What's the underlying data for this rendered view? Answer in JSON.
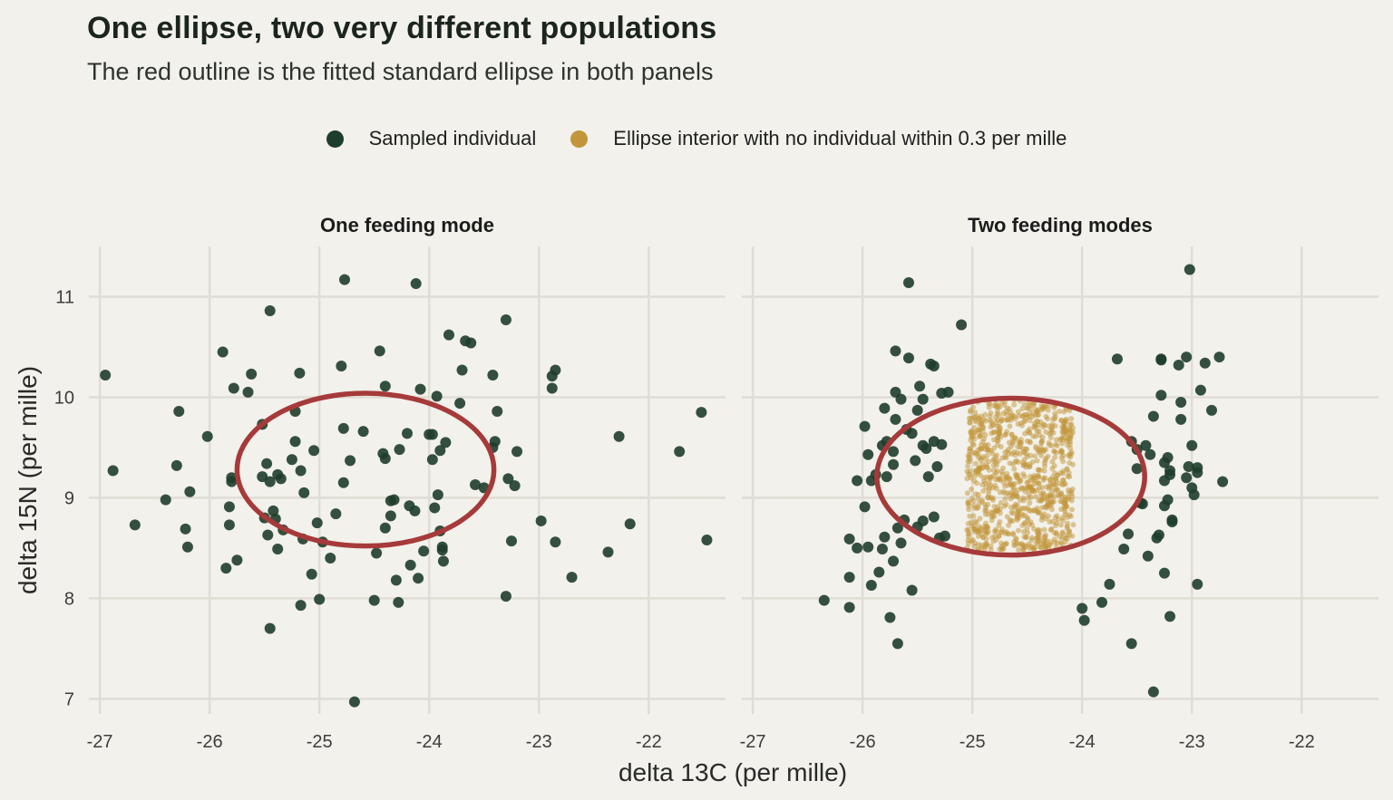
{
  "title": "One ellipse, two very different populations",
  "subtitle": "The red outline is the fitted standard ellipse in both panels",
  "legend": [
    {
      "label": "Sampled individual",
      "color": "#1f3d2b"
    },
    {
      "label": "Ellipse interior with no individual within 0.3 per mille",
      "color": "#c2953a"
    }
  ],
  "colors": {
    "points": "#1f3d2b",
    "fill": "#c2953a",
    "ellipse": "#a63a3a",
    "grid": "#dfddd4"
  },
  "chart_data": [
    {
      "type": "scatter",
      "panel_title": "One feeding mode",
      "xlabel": "delta 13C (per mille)",
      "ylabel": "delta 15N (per mille)",
      "xlim": [
        -27.1,
        -21.3
      ],
      "ylim": [
        6.85,
        11.5
      ],
      "x_ticks": [
        -27,
        -26,
        -25,
        -24,
        -23,
        -22
      ],
      "y_ticks": [
        7,
        8,
        9,
        10,
        11
      ],
      "grid": true,
      "ellipse": {
        "cx": -24.58,
        "cy": 9.28,
        "rx": 1.17,
        "ry": 0.76
      },
      "points": [
        [
          -26.95,
          10.22
        ],
        [
          -26.88,
          9.27
        ],
        [
          -26.68,
          8.73
        ],
        [
          -26.4,
          8.98
        ],
        [
          -26.3,
          9.32
        ],
        [
          -26.28,
          9.86
        ],
        [
          -26.22,
          8.69
        ],
        [
          -26.2,
          8.51
        ],
        [
          -26.18,
          9.06
        ],
        [
          -26.02,
          9.61
        ],
        [
          -25.88,
          10.45
        ],
        [
          -25.85,
          8.3
        ],
        [
          -25.82,
          8.73
        ],
        [
          -25.82,
          8.91
        ],
        [
          -25.8,
          9.2
        ],
        [
          -25.8,
          9.16
        ],
        [
          -25.78,
          10.09
        ],
        [
          -25.75,
          8.38
        ],
        [
          -25.65,
          10.05
        ],
        [
          -25.62,
          10.23
        ],
        [
          -25.52,
          9.73
        ],
        [
          -25.52,
          9.21
        ],
        [
          -25.5,
          8.8
        ],
        [
          -25.48,
          9.34
        ],
        [
          -25.47,
          8.63
        ],
        [
          -25.45,
          9.16
        ],
        [
          -25.45,
          10.86
        ],
        [
          -25.45,
          7.7
        ],
        [
          -25.42,
          8.87
        ],
        [
          -25.4,
          8.79
        ],
        [
          -25.38,
          9.23
        ],
        [
          -25.38,
          8.49
        ],
        [
          -25.35,
          9.19
        ],
        [
          -25.33,
          8.68
        ],
        [
          -25.25,
          9.38
        ],
        [
          -25.22,
          9.56
        ],
        [
          -25.22,
          9.86
        ],
        [
          -25.18,
          10.24
        ],
        [
          -25.17,
          9.27
        ],
        [
          -25.17,
          7.93
        ],
        [
          -25.15,
          8.59
        ],
        [
          -25.14,
          9.05
        ],
        [
          -25.07,
          8.24
        ],
        [
          -25.05,
          9.47
        ],
        [
          -25.02,
          8.75
        ],
        [
          -25.0,
          7.99
        ],
        [
          -24.97,
          8.56
        ],
        [
          -24.9,
          8.4
        ],
        [
          -24.85,
          8.84
        ],
        [
          -24.8,
          10.31
        ],
        [
          -24.78,
          9.69
        ],
        [
          -24.78,
          9.15
        ],
        [
          -24.77,
          11.17
        ],
        [
          -24.72,
          9.37
        ],
        [
          -24.68,
          6.97
        ],
        [
          -24.6,
          9.66
        ],
        [
          -24.5,
          7.98
        ],
        [
          -24.48,
          8.45
        ],
        [
          -24.45,
          10.46
        ],
        [
          -24.42,
          9.44
        ],
        [
          -24.4,
          10.11
        ],
        [
          -24.4,
          8.7
        ],
        [
          -24.4,
          9.39
        ],
        [
          -24.35,
          8.82
        ],
        [
          -24.35,
          8.97
        ],
        [
          -24.32,
          8.98
        ],
        [
          -24.3,
          8.18
        ],
        [
          -24.28,
          7.96
        ],
        [
          -24.27,
          9.48
        ],
        [
          -24.2,
          9.64
        ],
        [
          -24.18,
          8.92
        ],
        [
          -24.17,
          8.33
        ],
        [
          -24.13,
          8.87
        ],
        [
          -24.12,
          11.13
        ],
        [
          -24.1,
          8.2
        ],
        [
          -24.08,
          10.08
        ],
        [
          -24.05,
          8.47
        ],
        [
          -24.0,
          9.63
        ],
        [
          -23.97,
          9.63
        ],
        [
          -23.97,
          9.38
        ],
        [
          -23.95,
          8.9
        ],
        [
          -23.93,
          10.01
        ],
        [
          -23.92,
          9.03
        ],
        [
          -23.9,
          8.67
        ],
        [
          -23.9,
          9.47
        ],
        [
          -23.88,
          8.51
        ],
        [
          -23.88,
          8.48
        ],
        [
          -23.87,
          8.37
        ],
        [
          -23.85,
          9.55
        ],
        [
          -23.82,
          10.62
        ],
        [
          -23.72,
          9.94
        ],
        [
          -23.7,
          10.27
        ],
        [
          -23.67,
          10.56
        ],
        [
          -23.62,
          10.54
        ],
        [
          -23.58,
          9.13
        ],
        [
          -23.5,
          9.1
        ],
        [
          -23.42,
          9.5
        ],
        [
          -23.42,
          10.22
        ],
        [
          -23.4,
          9.56
        ],
        [
          -23.38,
          9.86
        ],
        [
          -23.3,
          10.77
        ],
        [
          -23.3,
          8.02
        ],
        [
          -23.28,
          9.19
        ],
        [
          -23.25,
          8.57
        ],
        [
          -23.22,
          9.12
        ],
        [
          -23.2,
          9.46
        ],
        [
          -22.98,
          8.77
        ],
        [
          -22.88,
          10.09
        ],
        [
          -22.88,
          10.21
        ],
        [
          -22.85,
          10.27
        ],
        [
          -22.85,
          8.56
        ],
        [
          -22.7,
          8.21
        ],
        [
          -22.37,
          8.46
        ],
        [
          -22.27,
          9.61
        ],
        [
          -22.17,
          8.74
        ],
        [
          -21.72,
          9.46
        ],
        [
          -21.52,
          9.85
        ],
        [
          -21.47,
          8.58
        ]
      ],
      "fill_region": {
        "x": [
          -23.62,
          -23.58
        ],
        "y": [
          8.78,
          8.86
        ],
        "density": 3
      }
    },
    {
      "type": "scatter",
      "panel_title": "Two feeding modes",
      "xlabel": "delta 13C (per mille)",
      "ylabel": "delta 15N (per mille)",
      "xlim": [
        -27.1,
        -21.3
      ],
      "ylim": [
        6.85,
        11.5
      ],
      "x_ticks": [
        -27,
        -26,
        -25,
        -24,
        -23,
        -22
      ],
      "y_ticks": [
        7,
        8,
        9,
        10,
        11
      ],
      "grid": true,
      "ellipse": {
        "cx": -24.65,
        "cy": 9.21,
        "rx": 1.22,
        "ry": 0.78
      },
      "points": [
        [
          -26.35,
          7.98
        ],
        [
          -26.12,
          8.21
        ],
        [
          -26.12,
          7.91
        ],
        [
          -26.12,
          8.59
        ],
        [
          -26.05,
          9.17
        ],
        [
          -26.05,
          8.5
        ],
        [
          -25.98,
          9.71
        ],
        [
          -25.98,
          8.91
        ],
        [
          -25.95,
          9.43
        ],
        [
          -25.95,
          8.51
        ],
        [
          -25.92,
          9.17
        ],
        [
          -25.92,
          8.13
        ],
        [
          -25.88,
          9.23
        ],
        [
          -25.85,
          8.26
        ],
        [
          -25.82,
          9.52
        ],
        [
          -25.82,
          8.49
        ],
        [
          -25.8,
          9.89
        ],
        [
          -25.8,
          8.61
        ],
        [
          -25.78,
          9.56
        ],
        [
          -25.78,
          9.21
        ],
        [
          -25.75,
          7.81
        ],
        [
          -25.72,
          9.46
        ],
        [
          -25.72,
          8.37
        ],
        [
          -25.72,
          9.33
        ],
        [
          -25.7,
          10.46
        ],
        [
          -25.7,
          9.78
        ],
        [
          -25.7,
          10.05
        ],
        [
          -25.68,
          8.7
        ],
        [
          -25.68,
          7.55
        ],
        [
          -25.65,
          8.55
        ],
        [
          -25.65,
          9.98
        ],
        [
          -25.62,
          8.78
        ],
        [
          -25.6,
          9.68
        ],
        [
          -25.58,
          10.39
        ],
        [
          -25.58,
          11.14
        ],
        [
          -25.55,
          8.08
        ],
        [
          -25.55,
          9.64
        ],
        [
          -25.52,
          9.37
        ],
        [
          -25.5,
          8.71
        ],
        [
          -25.5,
          9.87
        ],
        [
          -25.48,
          10.11
        ],
        [
          -25.45,
          8.77
        ],
        [
          -25.45,
          9.52
        ],
        [
          -25.45,
          9.98
        ],
        [
          -25.42,
          9.49
        ],
        [
          -25.4,
          9.21
        ],
        [
          -25.38,
          10.33
        ],
        [
          -25.35,
          9.56
        ],
        [
          -25.35,
          8.81
        ],
        [
          -25.35,
          10.31
        ],
        [
          -25.32,
          9.31
        ],
        [
          -25.3,
          8.6
        ],
        [
          -25.28,
          9.53
        ],
        [
          -25.28,
          10.04
        ],
        [
          -25.25,
          8.62
        ],
        [
          -25.22,
          10.05
        ],
        [
          -25.1,
          10.72
        ],
        [
          -23.62,
          8.49
        ],
        [
          -23.58,
          8.64
        ],
        [
          -23.55,
          9.56
        ],
        [
          -23.55,
          7.55
        ],
        [
          -23.68,
          10.38
        ],
        [
          -23.5,
          9.29
        ],
        [
          -23.5,
          9.48
        ],
        [
          -23.47,
          8.95
        ],
        [
          -23.45,
          8.94
        ],
        [
          -23.42,
          9.52
        ],
        [
          -23.4,
          8.42
        ],
        [
          -23.38,
          9.43
        ],
        [
          -23.35,
          9.81
        ],
        [
          -23.35,
          7.07
        ],
        [
          -23.32,
          8.6
        ],
        [
          -23.3,
          8.63
        ],
        [
          -23.28,
          10.37
        ],
        [
          -23.28,
          10.38
        ],
        [
          -23.28,
          10.02
        ],
        [
          -23.25,
          9.17
        ],
        [
          -23.25,
          9.35
        ],
        [
          -23.25,
          8.92
        ],
        [
          -23.25,
          8.25
        ],
        [
          -23.22,
          9.4
        ],
        [
          -23.22,
          8.98
        ],
        [
          -23.2,
          9.27
        ],
        [
          -23.2,
          9.23
        ],
        [
          -23.2,
          7.82
        ],
        [
          -23.18,
          8.78
        ],
        [
          -23.18,
          8.76
        ],
        [
          -23.12,
          10.32
        ],
        [
          -23.1,
          9.78
        ],
        [
          -23.1,
          9.95
        ],
        [
          -23.05,
          9.2
        ],
        [
          -23.05,
          10.4
        ],
        [
          -23.03,
          9.31
        ],
        [
          -23.02,
          11.27
        ],
        [
          -23.0,
          9.1
        ],
        [
          -23.0,
          9.52
        ],
        [
          -22.98,
          9.03
        ],
        [
          -22.95,
          9.3
        ],
        [
          -22.95,
          9.25
        ],
        [
          -22.95,
          8.14
        ],
        [
          -22.92,
          10.07
        ],
        [
          -22.88,
          10.34
        ],
        [
          -22.82,
          9.87
        ],
        [
          -22.75,
          10.4
        ],
        [
          -22.72,
          9.16
        ],
        [
          -24.0,
          7.9
        ],
        [
          -23.98,
          7.78
        ],
        [
          -23.82,
          7.96
        ],
        [
          -23.75,
          8.14
        ]
      ],
      "fill_region": {
        "x": [
          -25.05,
          -24.08
        ],
        "y": [
          8.48,
          9.98
        ],
        "density": 950
      }
    }
  ],
  "axis": {
    "xlabel": "delta 13C (per mille)",
    "ylabel": "delta 15N (per mille)"
  }
}
